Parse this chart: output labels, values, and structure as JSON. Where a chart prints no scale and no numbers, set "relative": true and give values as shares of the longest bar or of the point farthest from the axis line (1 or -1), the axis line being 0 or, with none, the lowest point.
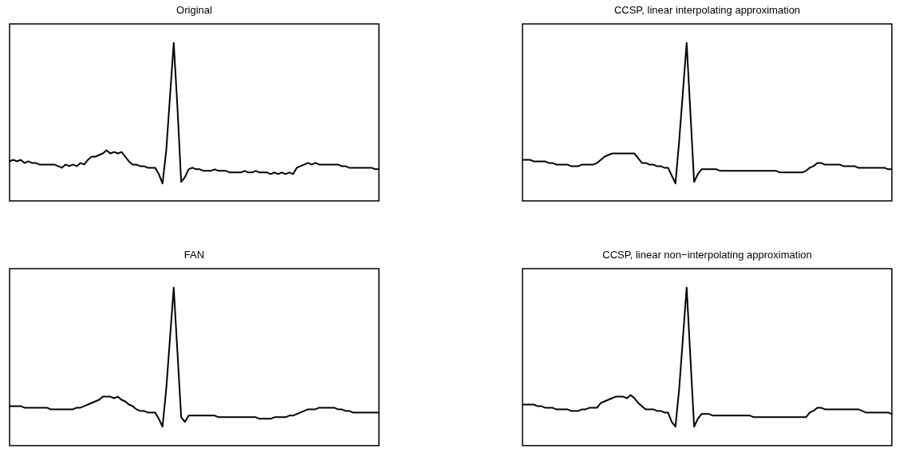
{
  "chart_data": [
    {
      "type": "line",
      "title": "Original",
      "relative": true,
      "categories": [
        null,
        null,
        null,
        null,
        null,
        null,
        null,
        null,
        null,
        null,
        null,
        null,
        null,
        null,
        null,
        null,
        null,
        null,
        null,
        null,
        null,
        null,
        null,
        null,
        null,
        null,
        null,
        null,
        null,
        null,
        null,
        null,
        null,
        null,
        null,
        null,
        null,
        null,
        null,
        null,
        null,
        null,
        null,
        null,
        null,
        null,
        null,
        null,
        null,
        null,
        null,
        null,
        null,
        null,
        null,
        null,
        null,
        null,
        null,
        null,
        null,
        null,
        null,
        null,
        null,
        null,
        null,
        null,
        null,
        null,
        null,
        null,
        null,
        null,
        null,
        null,
        null,
        null,
        null,
        null,
        null,
        null,
        null,
        null,
        null,
        null,
        null,
        null,
        null,
        null,
        null,
        null,
        null,
        null,
        null,
        null,
        null,
        null,
        null,
        null
      ],
      "series": [
        {
          "color": "#000000",
          "values": [
            0.25,
            0.26,
            0.25,
            0.26,
            0.24,
            0.25,
            0.24,
            0.24,
            0.23,
            0.23,
            0.23,
            0.23,
            0.23,
            0.22,
            0.21,
            0.23,
            0.22,
            0.23,
            0.22,
            0.24,
            0.23,
            0.26,
            0.28,
            0.28,
            0.29,
            0.3,
            0.32,
            0.3,
            0.31,
            0.3,
            0.31,
            0.28,
            0.25,
            0.23,
            0.23,
            0.22,
            0.22,
            0.21,
            0.21,
            0.21,
            0.17,
            0.11,
            0.32,
            0.66,
            1,
            0.59,
            0.12,
            0.15,
            0.2,
            0.21,
            0.2,
            0.2,
            0.19,
            0.19,
            0.19,
            0.2,
            0.19,
            0.19,
            0.19,
            0.18,
            0.18,
            0.18,
            0.18,
            0.19,
            0.18,
            0.18,
            0.19,
            0.18,
            0.18,
            0.18,
            0.17,
            0.18,
            0.17,
            0.18,
            0.17,
            0.18,
            0.17,
            0.21,
            0.22,
            0.23,
            0.24,
            0.23,
            0.24,
            0.23,
            0.23,
            0.23,
            0.23,
            0.23,
            0.23,
            0.22,
            0.22,
            0.21,
            0.21,
            0.21,
            0.21,
            0.21,
            0.21,
            0.21,
            0.2,
            0.2
          ]
        }
      ]
    },
    {
      "type": "line",
      "title": "CCSP, linear interpolating approximation",
      "relative": true,
      "categories": [
        null,
        null,
        null,
        null,
        null,
        null,
        null,
        null,
        null,
        null,
        null,
        null,
        null,
        null,
        null,
        null,
        null,
        null,
        null,
        null,
        null,
        null,
        null,
        null,
        null,
        null,
        null,
        null,
        null,
        null,
        null,
        null,
        null,
        null,
        null,
        null,
        null,
        null,
        null,
        null,
        null,
        null,
        null,
        null,
        null,
        null,
        null,
        null,
        null,
        null,
        null,
        null,
        null,
        null,
        null,
        null,
        null,
        null,
        null,
        null,
        null,
        null,
        null,
        null,
        null,
        null,
        null,
        null,
        null,
        null,
        null,
        null,
        null,
        null,
        null,
        null,
        null,
        null,
        null,
        null,
        null,
        null,
        null,
        null,
        null,
        null,
        null,
        null,
        null,
        null,
        null,
        null,
        null,
        null,
        null,
        null,
        null,
        null,
        null,
        null
      ],
      "series": [
        {
          "color": "#000000",
          "values": [
            0.26,
            0.26,
            0.26,
            0.25,
            0.25,
            0.25,
            0.25,
            0.24,
            0.24,
            0.23,
            0.23,
            0.23,
            0.23,
            0.22,
            0.22,
            0.22,
            0.23,
            0.23,
            0.23,
            0.23,
            0.24,
            0.26,
            0.28,
            0.29,
            0.3,
            0.3,
            0.3,
            0.3,
            0.3,
            0.3,
            0.3,
            0.27,
            0.24,
            0.24,
            0.23,
            0.23,
            0.22,
            0.22,
            0.21,
            0.21,
            0.16,
            0.11,
            0.38,
            0.69,
            1,
            0.56,
            0.12,
            0.17,
            0.2,
            0.2,
            0.2,
            0.2,
            0.2,
            0.19,
            0.19,
            0.19,
            0.19,
            0.19,
            0.19,
            0.19,
            0.19,
            0.19,
            0.19,
            0.19,
            0.19,
            0.19,
            0.19,
            0.19,
            0.19,
            0.18,
            0.18,
            0.18,
            0.18,
            0.18,
            0.18,
            0.18,
            0.19,
            0.21,
            0.22,
            0.24,
            0.24,
            0.23,
            0.23,
            0.23,
            0.23,
            0.23,
            0.22,
            0.22,
            0.22,
            0.22,
            0.21,
            0.21,
            0.21,
            0.21,
            0.21,
            0.21,
            0.21,
            0.21,
            0.2,
            0.2
          ]
        }
      ]
    },
    {
      "type": "line",
      "title": "FAN",
      "relative": true,
      "categories": [
        null,
        null,
        null,
        null,
        null,
        null,
        null,
        null,
        null,
        null,
        null,
        null,
        null,
        null,
        null,
        null,
        null,
        null,
        null,
        null,
        null,
        null,
        null,
        null,
        null,
        null,
        null,
        null,
        null,
        null,
        null,
        null,
        null,
        null,
        null,
        null,
        null,
        null,
        null,
        null,
        null,
        null,
        null,
        null,
        null,
        null,
        null,
        null,
        null,
        null,
        null,
        null,
        null,
        null,
        null,
        null,
        null,
        null,
        null,
        null,
        null,
        null,
        null,
        null,
        null,
        null,
        null,
        null,
        null,
        null,
        null,
        null,
        null,
        null,
        null,
        null,
        null,
        null,
        null,
        null,
        null,
        null,
        null,
        null,
        null,
        null,
        null,
        null,
        null,
        null,
        null,
        null,
        null,
        null,
        null,
        null,
        null,
        null,
        null,
        null
      ],
      "series": [
        {
          "color": "#000000",
          "values": [
            0.25,
            0.25,
            0.25,
            0.25,
            0.24,
            0.24,
            0.24,
            0.24,
            0.24,
            0.24,
            0.24,
            0.23,
            0.23,
            0.23,
            0.23,
            0.23,
            0.23,
            0.23,
            0.24,
            0.24,
            0.25,
            0.26,
            0.27,
            0.28,
            0.29,
            0.31,
            0.31,
            0.31,
            0.3,
            0.31,
            0.29,
            0.28,
            0.26,
            0.25,
            0.23,
            0.22,
            0.22,
            0.21,
            0.21,
            0.21,
            0.17,
            0.12,
            0.36,
            0.68,
            1,
            0.59,
            0.18,
            0.15,
            0.19,
            0.19,
            0.19,
            0.19,
            0.19,
            0.19,
            0.19,
            0.19,
            0.18,
            0.18,
            0.18,
            0.18,
            0.18,
            0.18,
            0.18,
            0.18,
            0.18,
            0.18,
            0.18,
            0.17,
            0.17,
            0.17,
            0.17,
            0.18,
            0.18,
            0.18,
            0.18,
            0.19,
            0.19,
            0.2,
            0.21,
            0.22,
            0.23,
            0.23,
            0.23,
            0.24,
            0.24,
            0.24,
            0.24,
            0.24,
            0.23,
            0.23,
            0.22,
            0.22,
            0.21,
            0.21,
            0.21,
            0.21,
            0.21,
            0.21,
            0.21,
            0.21
          ]
        }
      ]
    },
    {
      "type": "line",
      "title": "CCSP, linear non−interpolating approximation",
      "relative": true,
      "categories": [
        null,
        null,
        null,
        null,
        null,
        null,
        null,
        null,
        null,
        null,
        null,
        null,
        null,
        null,
        null,
        null,
        null,
        null,
        null,
        null,
        null,
        null,
        null,
        null,
        null,
        null,
        null,
        null,
        null,
        null,
        null,
        null,
        null,
        null,
        null,
        null,
        null,
        null,
        null,
        null,
        null,
        null,
        null,
        null,
        null,
        null,
        null,
        null,
        null,
        null,
        null,
        null,
        null,
        null,
        null,
        null,
        null,
        null,
        null,
        null,
        null,
        null,
        null,
        null,
        null,
        null,
        null,
        null,
        null,
        null,
        null,
        null,
        null,
        null,
        null,
        null,
        null,
        null,
        null,
        null,
        null,
        null,
        null,
        null,
        null,
        null,
        null,
        null,
        null,
        null,
        null,
        null,
        null,
        null,
        null,
        null,
        null,
        null,
        null,
        null
      ],
      "series": [
        {
          "color": "#000000",
          "values": [
            0.26,
            0.26,
            0.26,
            0.26,
            0.25,
            0.25,
            0.24,
            0.24,
            0.24,
            0.23,
            0.23,
            0.23,
            0.23,
            0.22,
            0.22,
            0.22,
            0.23,
            0.23,
            0.24,
            0.24,
            0.24,
            0.27,
            0.28,
            0.29,
            0.3,
            0.31,
            0.31,
            0.31,
            0.3,
            0.32,
            0.3,
            0.27,
            0.25,
            0.23,
            0.23,
            0.23,
            0.22,
            0.22,
            0.21,
            0.21,
            0.15,
            0.12,
            0.36,
            0.68,
            1,
            0.56,
            0.12,
            0.17,
            0.2,
            0.2,
            0.2,
            0.19,
            0.19,
            0.19,
            0.19,
            0.19,
            0.19,
            0.19,
            0.19,
            0.19,
            0.19,
            0.19,
            0.18,
            0.18,
            0.18,
            0.18,
            0.18,
            0.18,
            0.18,
            0.18,
            0.18,
            0.18,
            0.18,
            0.18,
            0.18,
            0.18,
            0.18,
            0.21,
            0.22,
            0.24,
            0.24,
            0.23,
            0.23,
            0.23,
            0.23,
            0.23,
            0.23,
            0.23,
            0.23,
            0.23,
            0.23,
            0.22,
            0.21,
            0.21,
            0.21,
            0.21,
            0.21,
            0.21,
            0.21,
            0.2
          ]
        }
      ]
    }
  ]
}
